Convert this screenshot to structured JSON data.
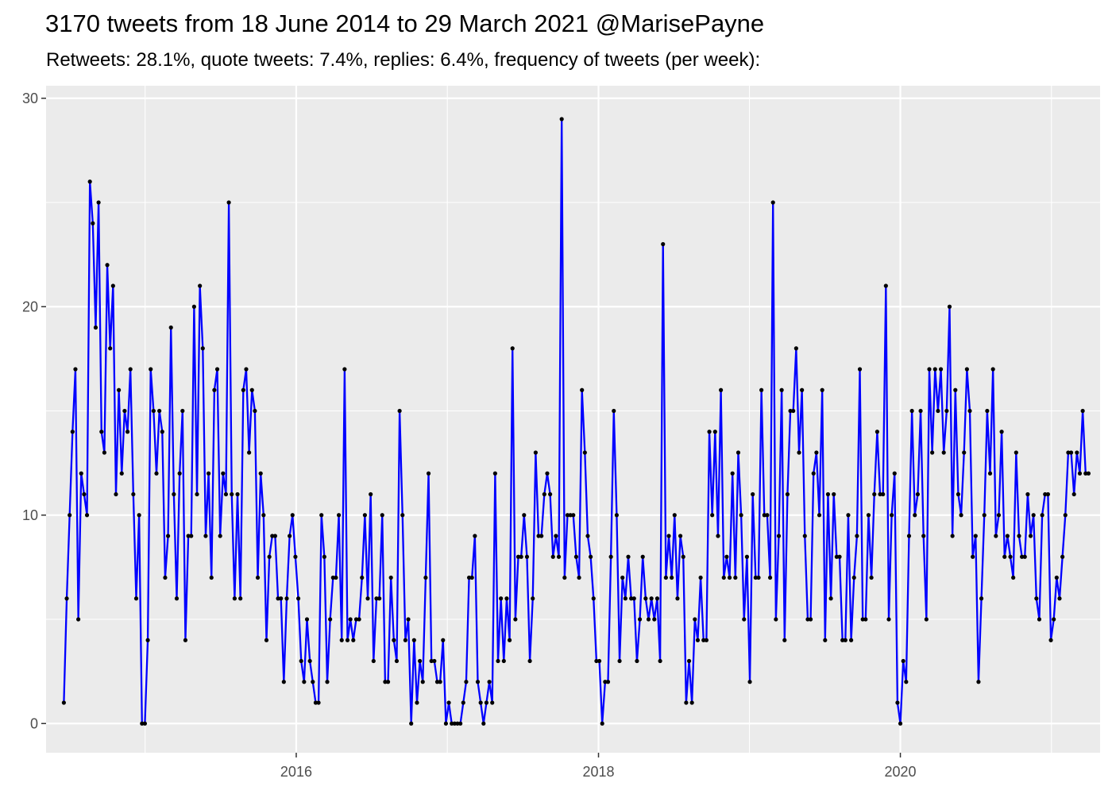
{
  "chart_data": {
    "type": "line",
    "title": "3170 tweets from 18 June 2014 to 29 March 2021 @MarisePayne",
    "subtitle": "Retweets: 28.1%, quote tweets: 7.4%, replies: 6.4%, frequency of tweets (per week):",
    "xlabel": "",
    "ylabel": "",
    "x_unit": "week_start_date",
    "xlim": [
      "2014-05-06",
      "2021-04-28"
    ],
    "ylim": [
      -1.4,
      30.6
    ],
    "x_ticks": [
      {
        "label": "2016",
        "date": "2016-01-01"
      },
      {
        "label": "2018",
        "date": "2018-01-01"
      },
      {
        "label": "2020",
        "date": "2020-01-01"
      }
    ],
    "y_ticks": [
      0,
      10,
      20,
      30
    ],
    "grid": true,
    "line_color": "#0000ff",
    "point_color": "#000000",
    "panel_background": "#ebebeb",
    "series": [
      {
        "start_date": "2014-06-18",
        "interval_days": 7,
        "values": [
          1,
          6,
          10,
          14,
          17,
          5,
          12,
          11,
          10,
          26,
          24,
          19,
          25,
          14,
          13,
          22,
          18,
          21,
          11,
          16,
          12,
          15,
          14,
          17,
          11,
          6,
          10,
          0,
          0,
          4,
          17,
          15,
          12,
          15,
          14,
          7,
          9,
          19,
          11,
          6,
          12,
          15,
          4,
          9,
          9,
          20,
          11,
          21,
          18,
          9,
          12,
          7,
          16,
          17,
          9,
          12,
          11,
          25,
          11,
          6,
          11,
          6,
          16,
          17,
          13,
          16,
          15,
          7,
          12,
          10,
          4,
          8,
          9,
          9,
          6,
          6,
          2,
          6,
          9,
          10,
          8,
          6,
          3,
          2,
          5,
          3,
          2,
          1,
          1,
          10,
          8,
          2,
          5,
          7,
          7,
          10,
          4,
          17,
          4,
          5,
          4,
          5,
          5,
          7,
          10,
          6,
          11,
          3,
          6,
          6,
          10,
          2,
          2,
          7,
          4,
          3,
          15,
          10,
          4,
          5,
          0,
          4,
          1,
          3,
          2,
          7,
          12,
          3,
          3,
          2,
          2,
          4,
          0,
          1,
          0,
          0,
          0,
          0,
          1,
          2,
          7,
          7,
          9,
          2,
          1,
          0,
          1,
          2,
          1,
          12,
          3,
          6,
          3,
          6,
          4,
          18,
          5,
          8,
          8,
          10,
          8,
          3,
          6,
          13,
          9,
          9,
          11,
          12,
          11,
          8,
          9,
          8,
          29,
          7,
          10,
          10,
          10,
          8,
          7,
          16,
          13,
          9,
          8,
          6,
          3,
          3,
          0,
          2,
          2,
          8,
          15,
          10,
          3,
          7,
          6,
          8,
          6,
          6,
          3,
          5,
          8,
          6,
          5,
          6,
          5,
          6,
          3,
          23,
          7,
          9,
          7,
          10,
          6,
          9,
          8,
          1,
          3,
          1,
          5,
          4,
          7,
          4,
          4,
          14,
          10,
          14,
          9,
          16,
          7,
          8,
          7,
          12,
          7,
          13,
          10,
          5,
          8,
          2,
          11,
          7,
          7,
          16,
          10,
          10,
          7,
          25,
          5,
          9,
          16,
          4,
          11,
          15,
          15,
          18,
          13,
          16,
          9,
          5,
          5,
          12,
          13,
          10,
          16,
          4,
          11,
          6,
          11,
          8,
          8,
          4,
          4,
          10,
          4,
          7,
          9,
          17,
          5,
          5,
          10,
          7,
          11,
          14,
          11,
          11,
          21,
          5,
          10,
          12,
          1,
          0,
          3,
          2,
          9,
          15,
          10,
          11,
          15,
          9,
          5,
          17,
          13,
          17,
          15,
          17,
          13,
          15,
          20,
          9,
          16,
          11,
          10,
          13,
          17,
          15,
          8,
          9,
          2,
          6,
          10,
          15,
          12,
          17,
          9,
          10,
          14,
          8,
          9,
          8,
          7,
          13,
          9,
          8,
          8,
          11,
          9,
          10,
          6,
          5,
          10,
          11,
          11,
          4,
          5,
          7,
          6,
          8,
          10,
          13,
          13,
          11,
          13,
          12,
          15,
          12,
          12
        ]
      }
    ]
  }
}
